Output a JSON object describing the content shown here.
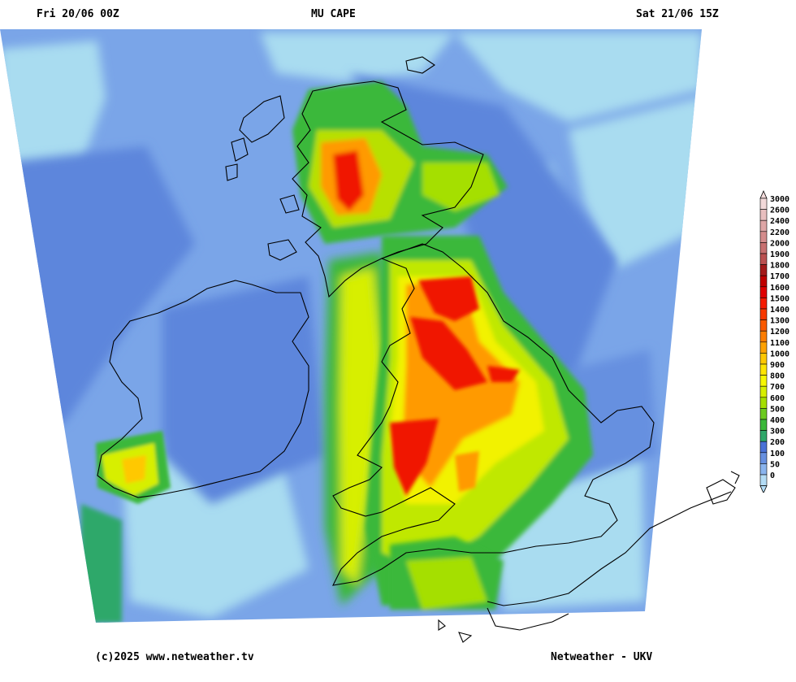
{
  "header": {
    "left": "Fri 20/06 00Z",
    "center": "MU CAPE",
    "right": "Sat 21/06 15Z"
  },
  "footer": {
    "left": "(c)2025 www.netweather.tv",
    "right": "Netweather - UKV"
  },
  "legend": {
    "levels": [
      {
        "label": "3000",
        "color": "#f2d9d9"
      },
      {
        "label": "2600",
        "color": "#e8bfbf"
      },
      {
        "label": "2400",
        "color": "#dea6a6"
      },
      {
        "label": "2200",
        "color": "#d48c8c"
      },
      {
        "label": "2000",
        "color": "#c87070"
      },
      {
        "label": "1900",
        "color": "#bb5151"
      },
      {
        "label": "1800",
        "color": "#a41a1a"
      },
      {
        "label": "1700",
        "color": "#c00000"
      },
      {
        "label": "1600",
        "color": "#e00000"
      },
      {
        "label": "1500",
        "color": "#f51a00"
      },
      {
        "label": "1400",
        "color": "#f83800"
      },
      {
        "label": "1300",
        "color": "#fa5a00"
      },
      {
        "label": "1200",
        "color": "#fc7d00"
      },
      {
        "label": "1100",
        "color": "#fea200"
      },
      {
        "label": "1000",
        "color": "#ffc800"
      },
      {
        "label": "900",
        "color": "#ffe400"
      },
      {
        "label": "800",
        "color": "#f7f700"
      },
      {
        "label": "700",
        "color": "#d7ef00"
      },
      {
        "label": "600",
        "color": "#a5df00"
      },
      {
        "label": "500",
        "color": "#6ccb1e"
      },
      {
        "label": "400",
        "color": "#3ab83a"
      },
      {
        "label": "300",
        "color": "#2fa86a"
      },
      {
        "label": "200",
        "color": "#4a72d6"
      },
      {
        "label": "100",
        "color": "#6790e0"
      },
      {
        "label": "50",
        "color": "#8ab4ee"
      },
      {
        "label": "0",
        "color": "#b3dcf5"
      }
    ]
  },
  "colors": {
    "sea_base": "#7aa5e8",
    "sea_light": "#a9dcf0",
    "cape_low": "#4a72d6",
    "cape_green": "#3ab83a",
    "cape_yellow": "#f2f200",
    "cape_orange": "#ff9a00",
    "cape_red": "#f01400",
    "coastline": "#000000"
  }
}
